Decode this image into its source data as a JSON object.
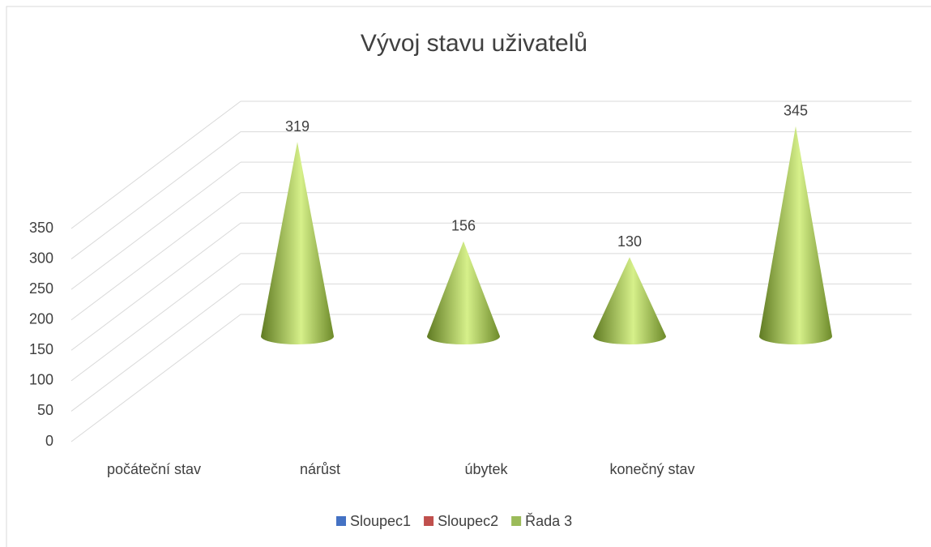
{
  "chart_data": {
    "type": "cone3d",
    "title": "Vývoj stavu uživatelů",
    "categories": [
      "počáteční stav",
      "nárůst",
      "úbytek",
      "konečný stav"
    ],
    "series": [
      {
        "name": "Sloupec1",
        "color": "#4472c4",
        "values": [
          null,
          null,
          null,
          null
        ]
      },
      {
        "name": "Sloupec2",
        "color": "#c0504d",
        "values": [
          null,
          null,
          null,
          null
        ]
      },
      {
        "name": "Řada 3",
        "color": "#9bbb59",
        "values": [
          319,
          156,
          130,
          345
        ]
      }
    ],
    "ylim": [
      0,
      350
    ],
    "yticks": [
      0,
      50,
      100,
      150,
      200,
      250,
      300,
      350
    ],
    "grid": true,
    "legend": "bottom"
  }
}
